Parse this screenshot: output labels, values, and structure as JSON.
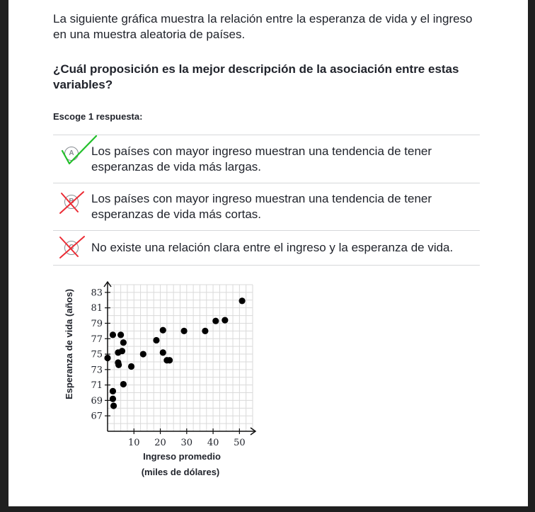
{
  "prompt": "La siguiente gráfica muestra la relación entre la esperanza de vida y el ingreso en una muestra aleatoria de países.",
  "question": "¿Cuál proposición es la mejor descripción de la asociación entre estas variables?",
  "instruction": "Escoge 1 respuesta:",
  "choices": [
    {
      "letter": "A",
      "text": "Los países con mayor ingreso muestran una tendencia de tener esperanzas de vida más largas.",
      "mark": "check",
      "mark_color": "#22c02a"
    },
    {
      "letter": "B",
      "text": "Los países con mayor ingreso muestran una tendencia de tener esperanzas de vida más cortas.",
      "mark": "cross",
      "mark_color": "#ec2b34"
    },
    {
      "letter": "C",
      "text": "No existe una relación clara entre el ingreso y la esperanza de vida.",
      "mark": "cross",
      "mark_color": "#ec2b34"
    }
  ],
  "chart_data": {
    "type": "scatter",
    "xlabel": "Ingreso promedio",
    "xlabel_line2": "(miles de dólares)",
    "ylabel": "Esperanza de vida (años)",
    "xlim": [
      0,
      55
    ],
    "ylim": [
      65,
      84
    ],
    "x_ticks": [
      10,
      20,
      30,
      40,
      50
    ],
    "y_ticks": [
      67,
      69,
      71,
      73,
      75,
      77,
      79,
      81,
      83
    ],
    "grid": true,
    "points": [
      {
        "x": 0,
        "y": 74.5
      },
      {
        "x": 2,
        "y": 77.5
      },
      {
        "x": 2,
        "y": 70.2
      },
      {
        "x": 2,
        "y": 69.2
      },
      {
        "x": 2.3,
        "y": 68.3
      },
      {
        "x": 4,
        "y": 75.2
      },
      {
        "x": 4,
        "y": 73.9
      },
      {
        "x": 4.2,
        "y": 73.6
      },
      {
        "x": 5,
        "y": 77.5
      },
      {
        "x": 5.5,
        "y": 75.4
      },
      {
        "x": 6,
        "y": 76.5
      },
      {
        "x": 6,
        "y": 71.1
      },
      {
        "x": 9,
        "y": 73.4
      },
      {
        "x": 13.5,
        "y": 75
      },
      {
        "x": 18.5,
        "y": 76.8
      },
      {
        "x": 21,
        "y": 78.1
      },
      {
        "x": 21,
        "y": 75.2
      },
      {
        "x": 22.5,
        "y": 74.2
      },
      {
        "x": 23.5,
        "y": 74.2
      },
      {
        "x": 29,
        "y": 78
      },
      {
        "x": 37,
        "y": 78
      },
      {
        "x": 41,
        "y": 79.3
      },
      {
        "x": 44.5,
        "y": 79.4
      },
      {
        "x": 51,
        "y": 81.9
      }
    ]
  }
}
